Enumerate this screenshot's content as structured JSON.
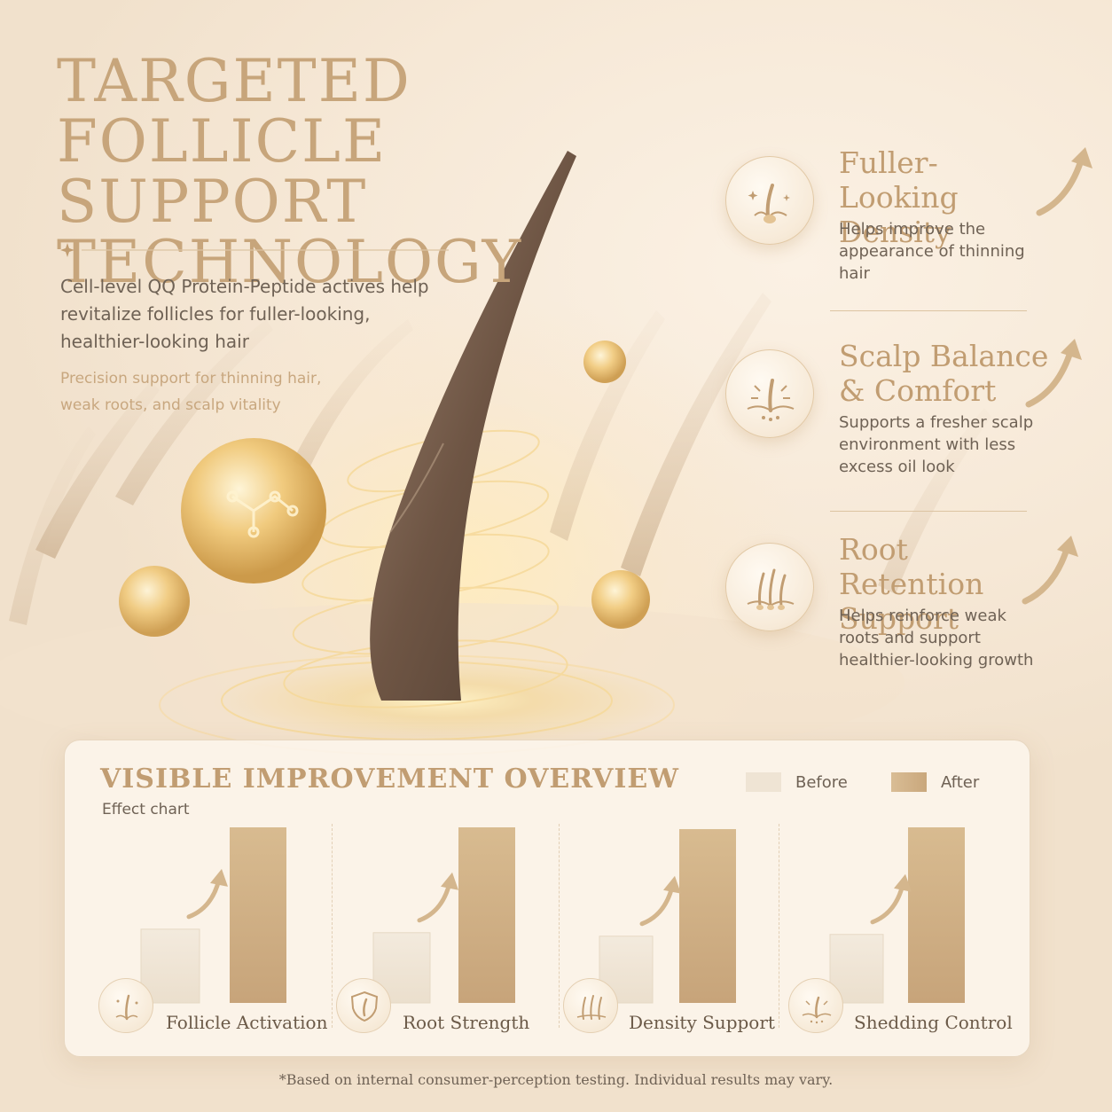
{
  "headline": {
    "lines": [
      "TARGETED",
      "FOLLICLE SUPPORT",
      "TECHNOLOGY"
    ]
  },
  "intro": "Cell-level QQ Protein-Peptide actives help revitalize follicles for fuller-looking, healthier-looking hair",
  "sub_intro": "Precision support for thinning hair, weak roots, and scalp vitality",
  "benefits": [
    {
      "title": "Fuller-Looking Density",
      "description": "Helps improve the appearance of thinning hair",
      "icon": "follicle-sparkle-icon"
    },
    {
      "title": "Scalp Balance & Comfort",
      "description": "Supports a fresher scalp environment with less excess oil look",
      "icon": "scalp-balance-icon"
    },
    {
      "title": "Root Retention Support",
      "description": "Helps reinforce weak roots and support healthier-looking growth",
      "icon": "root-strands-icon"
    }
  ],
  "chart": {
    "title": "VISIBLE IMPROVEMENT OVERVIEW",
    "subtitle": "Effect chart",
    "legend": {
      "before": "Before",
      "after": "After"
    }
  },
  "chart_data": {
    "type": "bar",
    "categories": [
      "Follicle Activation",
      "Root Strength",
      "Density Support",
      "Shedding Control"
    ],
    "category_icons": [
      "follicle-sparkle-icon",
      "shield-follicle-icon",
      "density-strands-icon",
      "scalp-sparkle-icon"
    ],
    "series": [
      {
        "name": "Before",
        "values": [
          42,
          40,
          38,
          39
        ],
        "color": "#efe4d4"
      },
      {
        "name": "After",
        "values": [
          100,
          100,
          99,
          100
        ],
        "color": "#cfae84"
      }
    ],
    "ylim": [
      0,
      100
    ],
    "grid": false,
    "legend_position": "top-right"
  },
  "footnote": "*Based on internal consumer-perception testing. Individual results may vary.",
  "colors": {
    "gold": "#c19d72",
    "gold_light": "#e7cfa9",
    "text": "#6f6255",
    "background": "#f5e7d5"
  }
}
